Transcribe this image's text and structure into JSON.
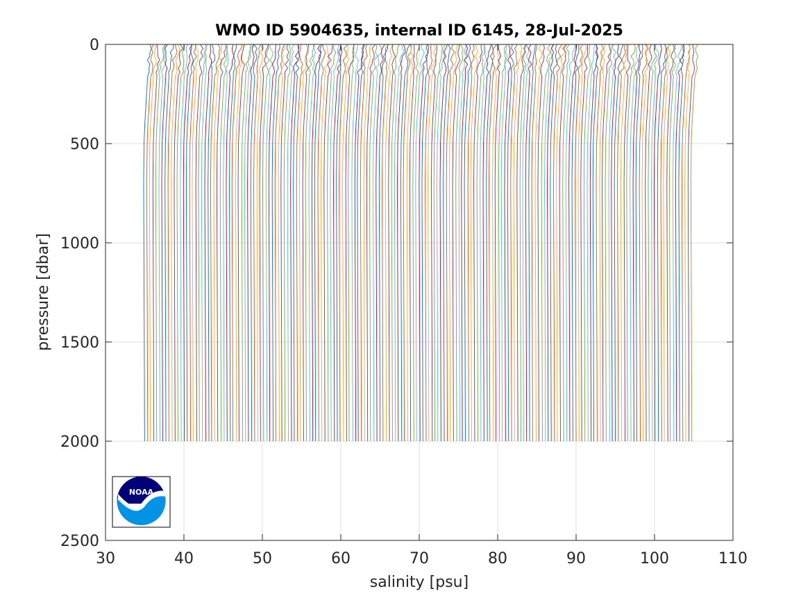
{
  "chart_data": {
    "type": "line",
    "title": "WMO ID 5904635, internal ID 6145, 28-Jul-2025",
    "xlabel": "salinity [psu]",
    "ylabel": "pressure [dbar]",
    "xlim": [
      30,
      110
    ],
    "ylim": [
      0,
      2500
    ],
    "y_reversed": true,
    "grid": true,
    "legend": "none",
    "x_ticks": [
      30,
      40,
      50,
      60,
      70,
      80,
      90,
      100,
      110
    ],
    "y_ticks": [
      0,
      500,
      1000,
      1500,
      2000,
      2500
    ],
    "x_tick_labels": [
      "30",
      "40",
      "50",
      "60",
      "70",
      "80",
      "90",
      "100",
      "110"
    ],
    "y_tick_labels": [
      "0",
      "500",
      "1000",
      "1500",
      "2000",
      "2500"
    ],
    "profile_count": 180,
    "profile_offset_psu": 0.39,
    "base_profile": {
      "pressure": [
        0,
        50,
        100,
        200,
        300,
        400,
        500,
        700,
        1000,
        1500,
        2000
      ],
      "salinity": [
        35.6,
        35.55,
        35.45,
        35.3,
        35.15,
        35.0,
        34.9,
        34.85,
        34.88,
        34.93,
        34.97
      ]
    },
    "series_colors": [
      "#0072BD",
      "#D95319",
      "#EDB120",
      "#7E2F8E",
      "#77AC30",
      "#4DBEEE",
      "#A2142F"
    ],
    "logo": {
      "text": "NOAA",
      "colors": [
        "#00007a",
        "#0093e6"
      ]
    }
  }
}
